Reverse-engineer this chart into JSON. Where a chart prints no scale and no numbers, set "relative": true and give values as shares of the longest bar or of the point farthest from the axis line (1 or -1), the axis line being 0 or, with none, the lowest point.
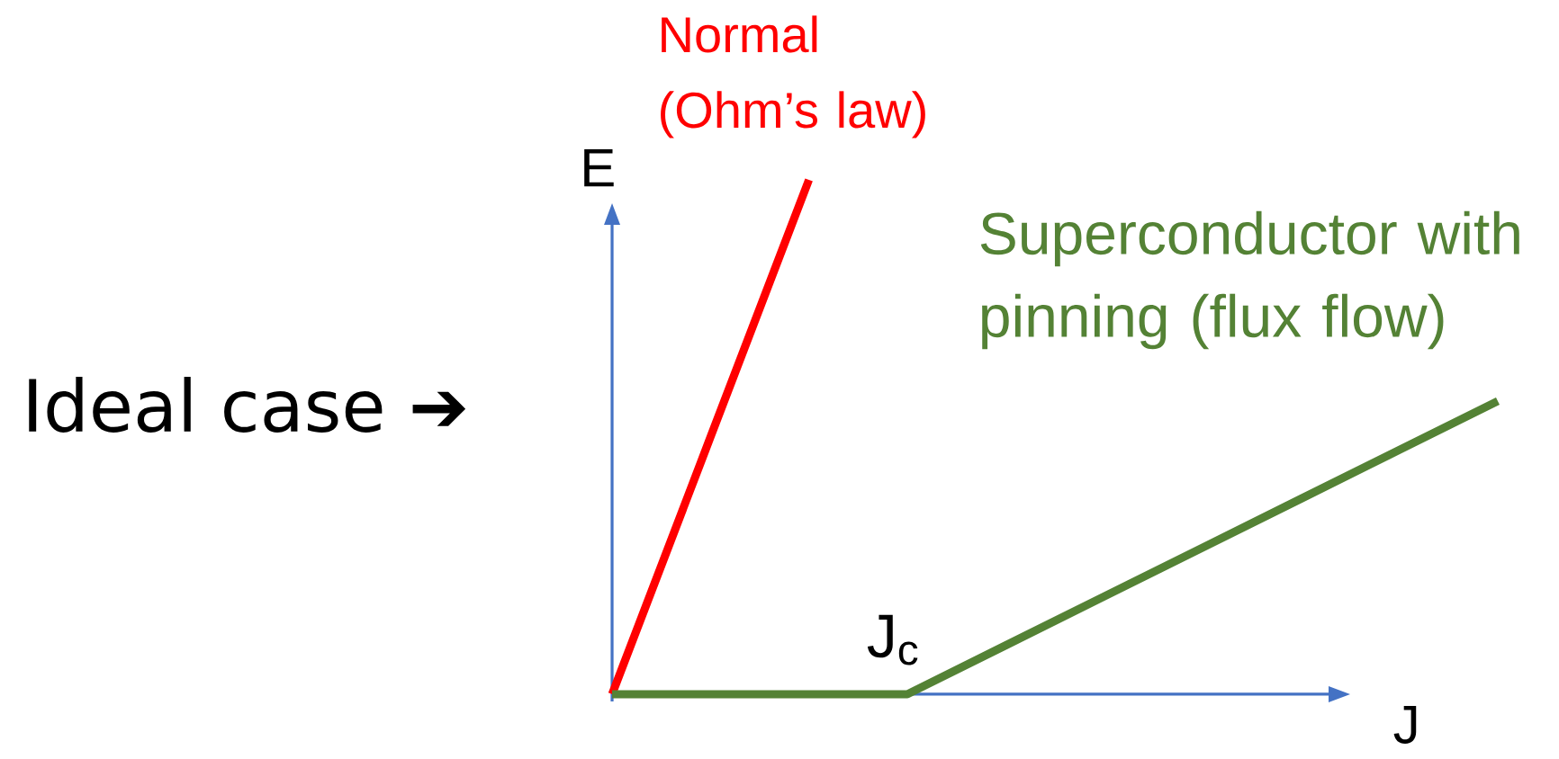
{
  "chart_data": {
    "type": "line",
    "relative": true,
    "xlabel": "J",
    "ylabel": "E",
    "categories": [
      null,
      null,
      null,
      null,
      null,
      null,
      null,
      null,
      null,
      null
    ],
    "series": [
      {
        "name": "Normal (Ohm’s law)",
        "color": "#ff0000",
        "values": [
          0,
          0.5,
          1,
          null,
          null,
          null,
          null,
          null,
          null,
          null
        ]
      },
      {
        "name": "Superconductor with pinning (flux flow)",
        "color": "#548235",
        "values": [
          0,
          0,
          0,
          0,
          0.095,
          0.19,
          0.285,
          0.38,
          0.475,
          0.57
        ]
      }
    ],
    "annotations": [
      "Ideal case ➔",
      "J$_{c}$"
    ],
    "line_style": "solid"
  }
}
